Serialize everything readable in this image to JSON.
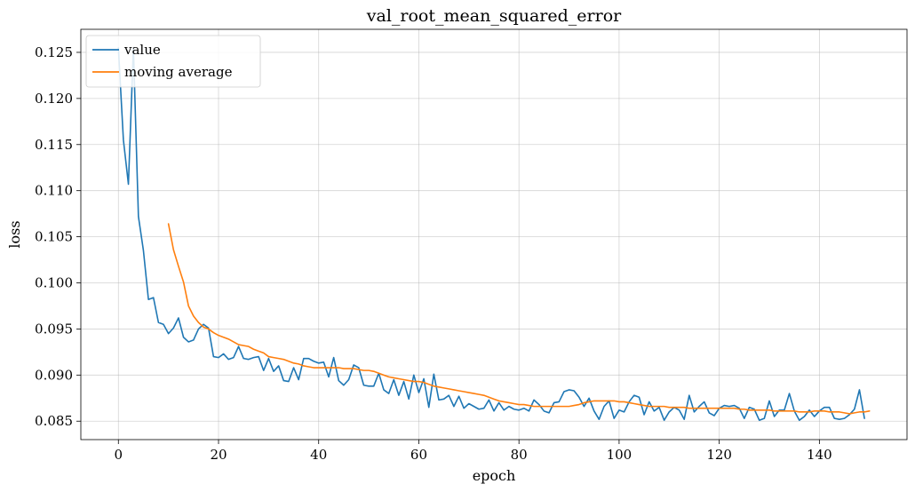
{
  "chart_data": {
    "type": "line",
    "title": "val_root_mean_squared_error",
    "xlabel": "epoch",
    "ylabel": "loss",
    "xlim": [
      -7.5,
      157.5
    ],
    "ylim": [
      0.083,
      0.1275
    ],
    "xticks": [
      0,
      20,
      40,
      60,
      80,
      100,
      120,
      140
    ],
    "yticks": [
      0.085,
      0.09,
      0.095,
      0.1,
      0.105,
      0.11,
      0.115,
      0.12,
      0.125
    ],
    "ytick_labels": [
      "0.085",
      "0.090",
      "0.095",
      "0.100",
      "0.105",
      "0.110",
      "0.115",
      "0.120",
      "0.125"
    ],
    "grid": true,
    "legend_position": "top-left",
    "series": [
      {
        "name": "value",
        "color": "#1f77b4",
        "x_start": 0,
        "values": [
          0.1255,
          0.1155,
          0.1107,
          0.1255,
          0.1072,
          0.1035,
          0.0982,
          0.0984,
          0.0957,
          0.0955,
          0.0945,
          0.0951,
          0.0962,
          0.0941,
          0.0936,
          0.0938,
          0.095,
          0.0955,
          0.0951,
          0.092,
          0.0919,
          0.0923,
          0.0917,
          0.0919,
          0.0931,
          0.0918,
          0.0917,
          0.0919,
          0.092,
          0.0905,
          0.0918,
          0.0904,
          0.091,
          0.0894,
          0.0893,
          0.0908,
          0.0895,
          0.0918,
          0.0918,
          0.0915,
          0.0913,
          0.0914,
          0.0898,
          0.0919,
          0.0894,
          0.0889,
          0.0895,
          0.0911,
          0.0908,
          0.0889,
          0.0888,
          0.0888,
          0.0902,
          0.0884,
          0.088,
          0.0895,
          0.0878,
          0.0893,
          0.0874,
          0.09,
          0.0881,
          0.0896,
          0.0865,
          0.0901,
          0.0873,
          0.0874,
          0.0878,
          0.0866,
          0.0877,
          0.0864,
          0.0869,
          0.0866,
          0.0863,
          0.0864,
          0.0873,
          0.0861,
          0.087,
          0.0862,
          0.0866,
          0.0863,
          0.0862,
          0.0864,
          0.0861,
          0.0873,
          0.0868,
          0.0861,
          0.0859,
          0.087,
          0.0871,
          0.0882,
          0.0884,
          0.0883,
          0.0876,
          0.0866,
          0.0875,
          0.0861,
          0.0852,
          0.0866,
          0.0872,
          0.0853,
          0.0862,
          0.086,
          0.0871,
          0.0878,
          0.0876,
          0.0857,
          0.0871,
          0.0861,
          0.0865,
          0.0851,
          0.086,
          0.0865,
          0.0862,
          0.0852,
          0.0878,
          0.086,
          0.0866,
          0.0871,
          0.0859,
          0.0856,
          0.0864,
          0.0867,
          0.0866,
          0.0867,
          0.0864,
          0.0853,
          0.0865,
          0.0863,
          0.0851,
          0.0853,
          0.0872,
          0.0855,
          0.0862,
          0.0862,
          0.088,
          0.0861,
          0.0851,
          0.0855,
          0.0862,
          0.0855,
          0.0861,
          0.0865,
          0.0865,
          0.0853,
          0.0852,
          0.0853,
          0.0857,
          0.0863,
          0.0884,
          0.0853
        ]
      },
      {
        "name": "moving average",
        "color": "#ff7f0e",
        "x_start": 10,
        "values": [
          0.1064,
          0.1036,
          0.1018,
          0.1001,
          0.0975,
          0.0964,
          0.0957,
          0.0952,
          0.095,
          0.0946,
          0.0943,
          0.0941,
          0.0939,
          0.0936,
          0.0933,
          0.0932,
          0.0931,
          0.0928,
          0.0926,
          0.0924,
          0.092,
          0.0919,
          0.0918,
          0.0917,
          0.0915,
          0.0913,
          0.0912,
          0.091,
          0.0909,
          0.0908,
          0.0908,
          0.0908,
          0.0908,
          0.0908,
          0.0908,
          0.0907,
          0.0907,
          0.0907,
          0.0906,
          0.0905,
          0.0905,
          0.0904,
          0.0902,
          0.09,
          0.0898,
          0.0897,
          0.0896,
          0.0895,
          0.0894,
          0.0893,
          0.0893,
          0.0892,
          0.089,
          0.0888,
          0.0887,
          0.0886,
          0.0885,
          0.0884,
          0.0883,
          0.0882,
          0.0881,
          0.088,
          0.0879,
          0.0878,
          0.0876,
          0.0874,
          0.0872,
          0.0871,
          0.087,
          0.0869,
          0.0868,
          0.0868,
          0.0867,
          0.0866,
          0.0866,
          0.0866,
          0.0866,
          0.0866,
          0.0866,
          0.0866,
          0.0866,
          0.0867,
          0.0868,
          0.087,
          0.0871,
          0.0872,
          0.0872,
          0.0872,
          0.0872,
          0.0872,
          0.0871,
          0.0871,
          0.087,
          0.0869,
          0.0868,
          0.0867,
          0.0866,
          0.0866,
          0.0866,
          0.0866,
          0.0865,
          0.0865,
          0.0865,
          0.0865,
          0.0864,
          0.0864,
          0.0864,
          0.0864,
          0.0864,
          0.0864,
          0.0864,
          0.0864,
          0.0864,
          0.0864,
          0.0863,
          0.0863,
          0.0862,
          0.0862,
          0.0862,
          0.0862,
          0.0862,
          0.0861,
          0.0861,
          0.0861,
          0.0861,
          0.0861,
          0.086,
          0.086,
          0.086,
          0.0861,
          0.0861,
          0.0861,
          0.086,
          0.086,
          0.086,
          0.0859,
          0.0858,
          0.0859,
          0.086,
          0.086,
          0.0861
        ]
      }
    ]
  }
}
